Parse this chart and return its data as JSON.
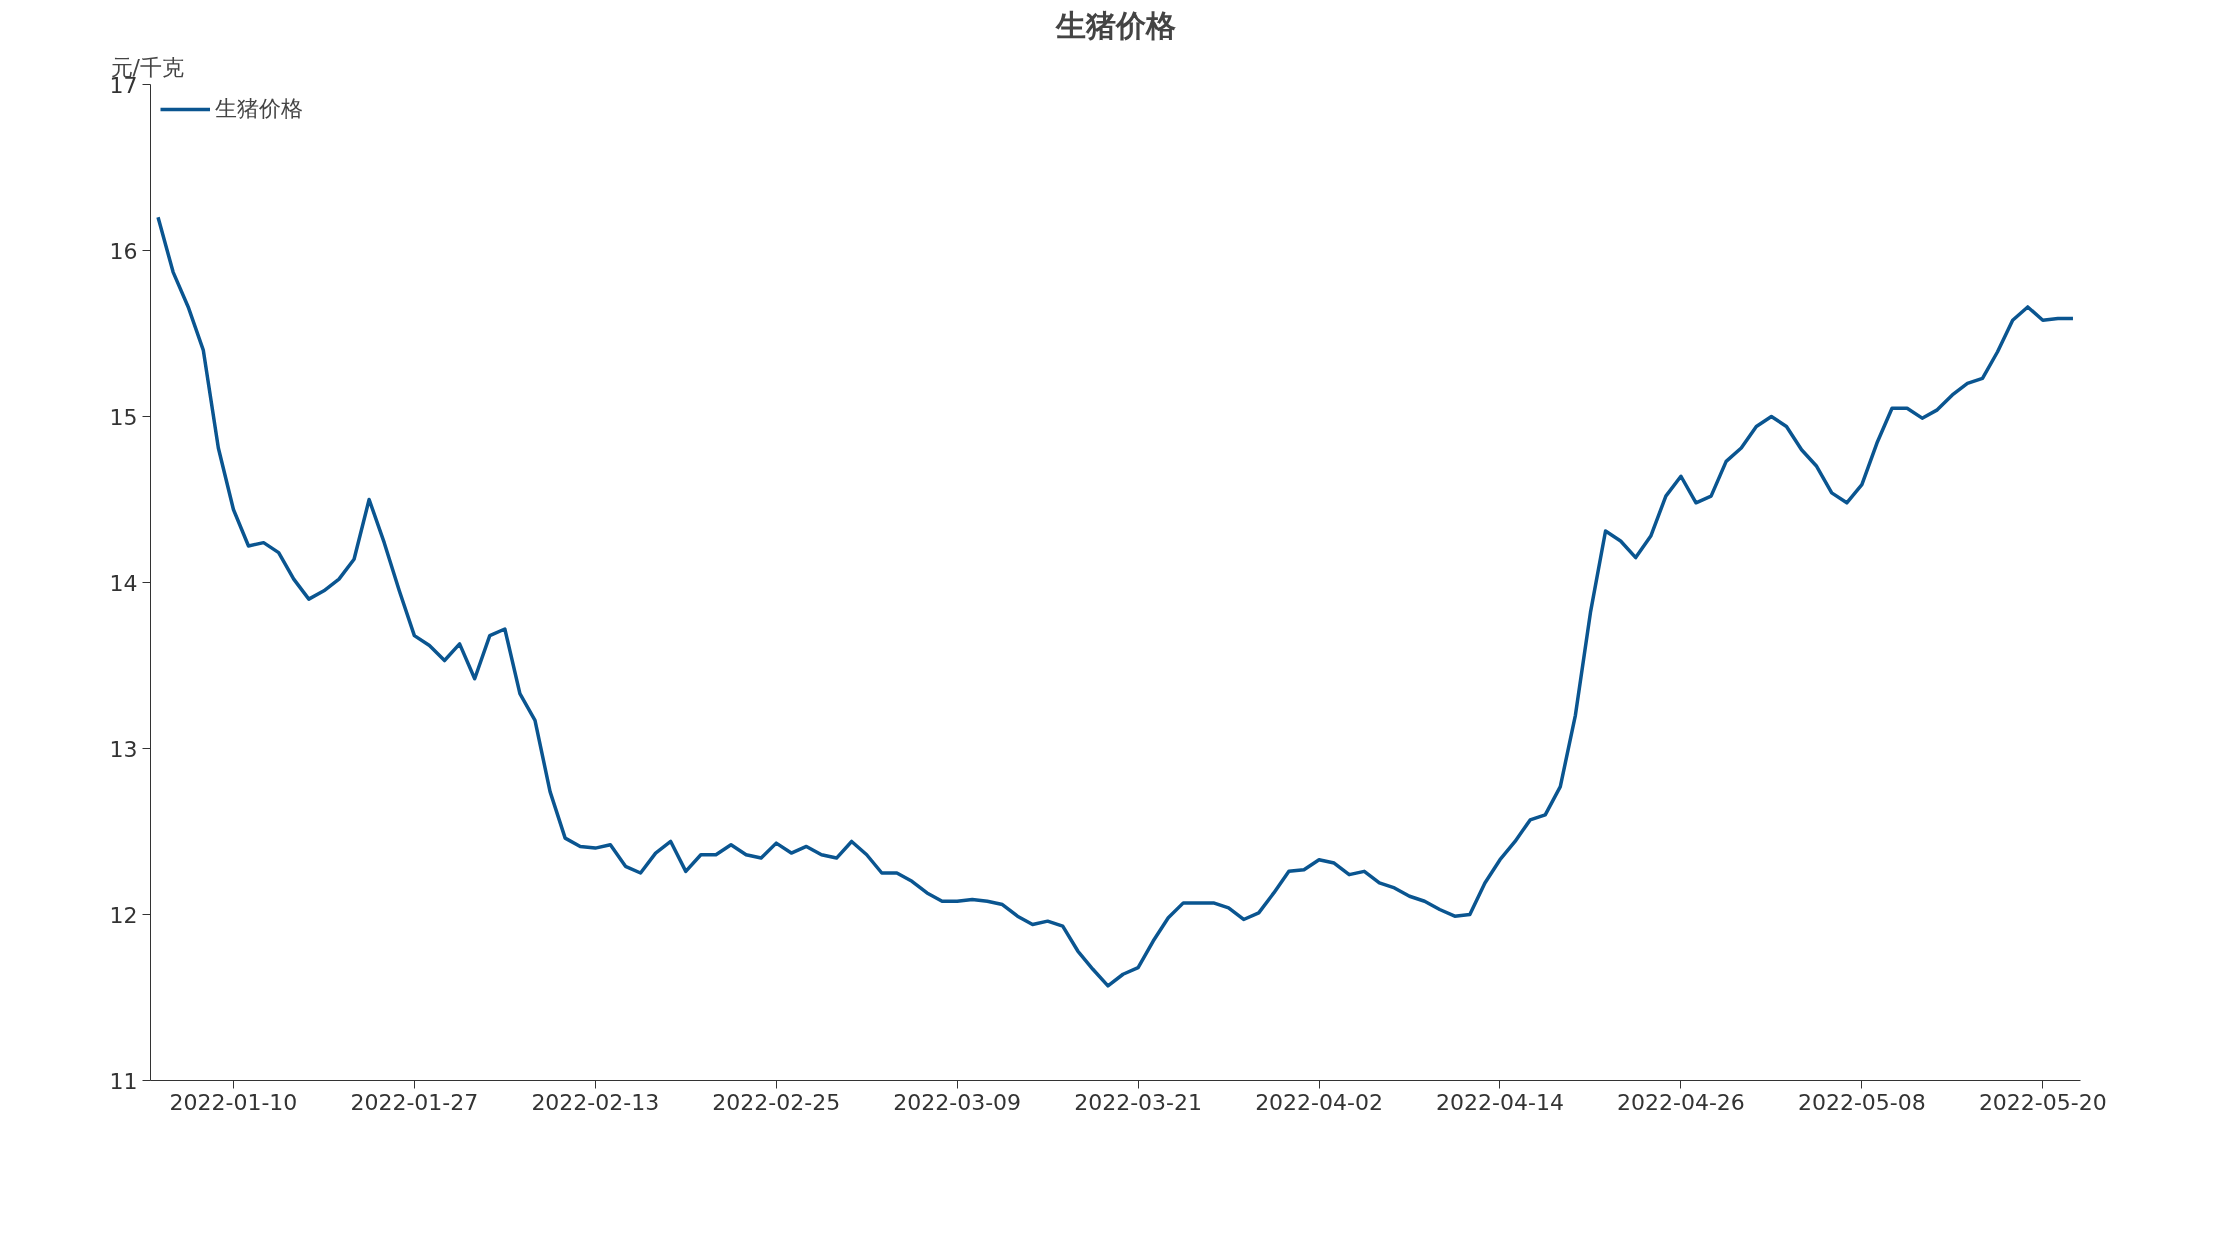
{
  "chart_data": {
    "type": "line",
    "title": "生猪价格",
    "ylabel": "元/千克",
    "categories": [
      null,
      null,
      null,
      null,
      null,
      "2022-01-10",
      null,
      null,
      null,
      null,
      null,
      null,
      null,
      null,
      null,
      null,
      null,
      "2022-01-27",
      null,
      null,
      null,
      null,
      null,
      null,
      null,
      null,
      null,
      null,
      null,
      "2022-02-13",
      null,
      null,
      null,
      null,
      null,
      null,
      null,
      null,
      null,
      null,
      null,
      "2022-02-25",
      null,
      null,
      null,
      null,
      null,
      null,
      null,
      null,
      null,
      null,
      null,
      "2022-03-09",
      null,
      null,
      null,
      null,
      null,
      null,
      null,
      null,
      null,
      null,
      null,
      "2022-03-21",
      null,
      null,
      null,
      null,
      null,
      null,
      null,
      null,
      null,
      null,
      null,
      "2022-04-02",
      null,
      null,
      null,
      null,
      null,
      null,
      null,
      null,
      null,
      null,
      null,
      "2022-04-14",
      null,
      null,
      null,
      null,
      null,
      null,
      null,
      null,
      null,
      null,
      null,
      "2022-04-26",
      null,
      null,
      null,
      null,
      null,
      null,
      null,
      null,
      null,
      null,
      null,
      "2022-05-08",
      null,
      null,
      null,
      null,
      null,
      null,
      null,
      null,
      null,
      null,
      null,
      "2022-05-20",
      null,
      null
    ],
    "series": [
      {
        "name": "生猪价格",
        "color": "#0a5590",
        "values": [
          16.2,
          15.87,
          15.66,
          15.4,
          14.81,
          14.44,
          14.22,
          14.24,
          14.18,
          14.02,
          13.9,
          13.95,
          14.02,
          14.14,
          14.5,
          14.24,
          13.95,
          13.68,
          13.62,
          13.53,
          13.63,
          13.42,
          13.68,
          13.72,
          13.33,
          13.17,
          12.74,
          12.46,
          12.41,
          12.4,
          12.42,
          12.29,
          12.25,
          12.37,
          12.44,
          12.26,
          12.36,
          12.36,
          12.42,
          12.36,
          12.34,
          12.43,
          12.37,
          12.41,
          12.36,
          12.34,
          12.44,
          12.36,
          12.25,
          12.25,
          12.2,
          12.13,
          12.08,
          12.08,
          12.09,
          12.08,
          12.06,
          11.99,
          11.94,
          11.96,
          11.93,
          11.78,
          11.67,
          11.57,
          11.64,
          11.68,
          11.84,
          11.98,
          12.07,
          12.07,
          12.07,
          12.04,
          11.97,
          12.01,
          12.13,
          12.26,
          12.27,
          12.33,
          12.31,
          12.24,
          12.26,
          12.19,
          12.16,
          12.11,
          12.08,
          12.03,
          11.99,
          12.0,
          12.19,
          12.33,
          12.44,
          12.57,
          12.6,
          12.77,
          13.2,
          13.82,
          14.31,
          14.25,
          14.15,
          14.28,
          14.52,
          14.64,
          14.48,
          14.52,
          14.73,
          14.81,
          14.94,
          15.0,
          14.94,
          14.8,
          14.7,
          14.54,
          14.48,
          14.59,
          14.84,
          15.05,
          15.05,
          14.99,
          15.04,
          15.13,
          15.2,
          15.23,
          15.39,
          15.58,
          15.66,
          15.58,
          15.59,
          15.59
        ]
      }
    ],
    "ylim": [
      11,
      17
    ],
    "yticks": [
      11,
      12,
      13,
      14,
      15,
      16,
      17
    ],
    "grid": false,
    "legend": "top left",
    "marker": "none",
    "line_style": "solid"
  }
}
